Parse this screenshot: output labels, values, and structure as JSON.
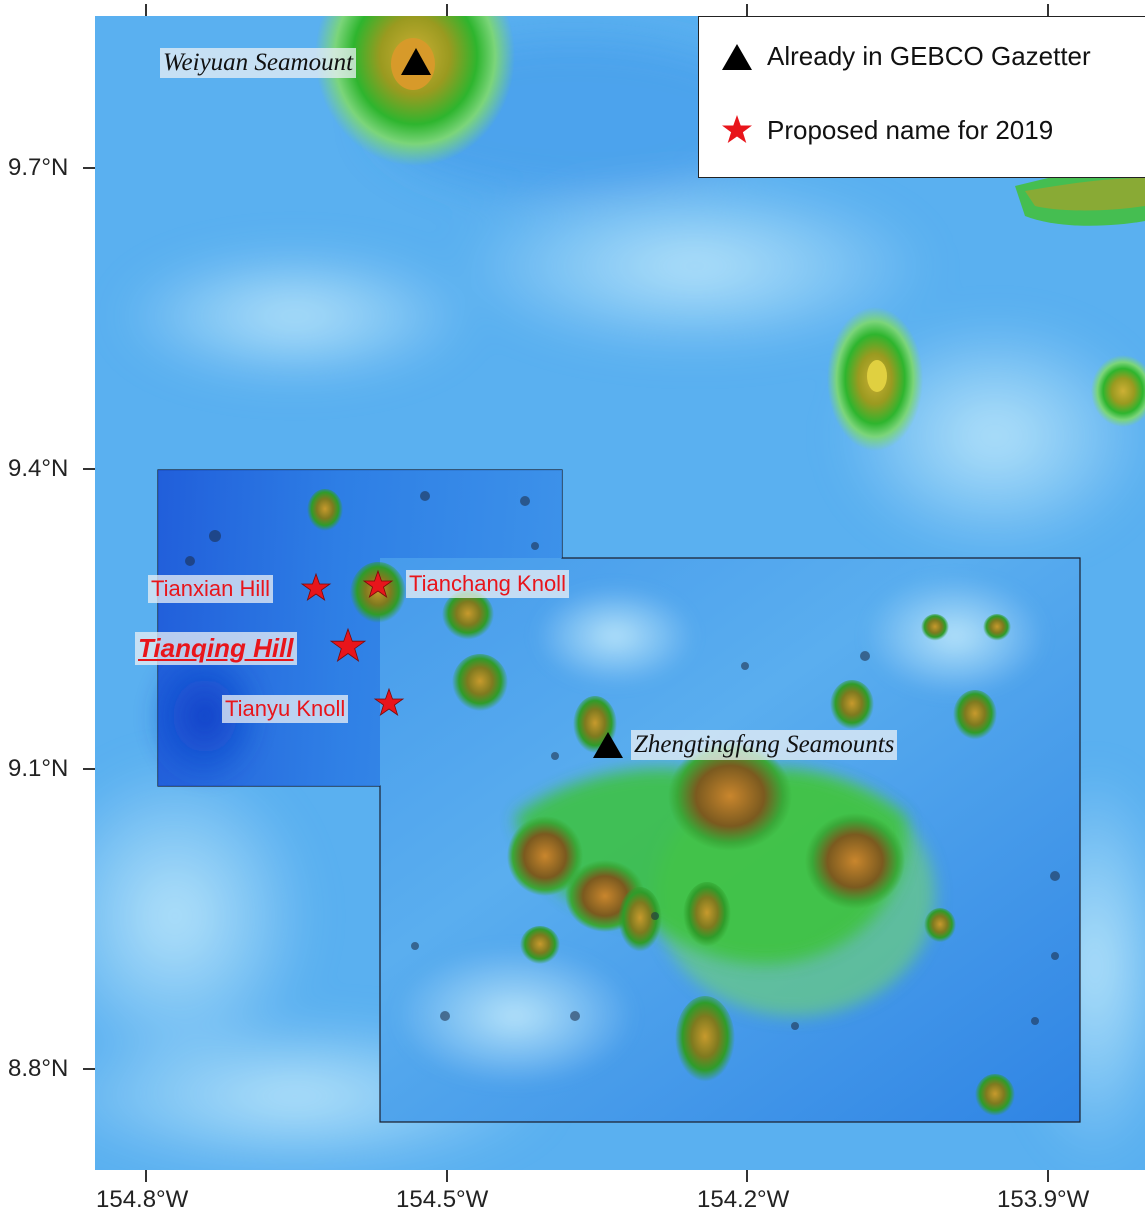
{
  "map": {
    "x_ticks": [
      "154.8°W",
      "154.5°W",
      "154.2°W",
      "153.9°W"
    ],
    "y_ticks": [
      "9.7°N",
      "9.4°N",
      "9.1°N",
      "8.8°N"
    ],
    "legend": {
      "existing": {
        "label": "Already in GEBCO Gazetter",
        "symbol": "black-triangle"
      },
      "proposed": {
        "label": "Proposed name for 2019",
        "symbol": "red-star"
      }
    },
    "features": {
      "weiyuan": "Weiyuan Seamount",
      "tianxian": "Tianxian Hill",
      "tianchang": "Tianchang Knoll",
      "tianqing": "Tianqing Hill",
      "tianyu": "Tianyu Knoll",
      "zhengtingfang": "Zhengtingfang Seamounts"
    },
    "colors": {
      "deep": "#1a5fd6",
      "mid": "#4fa8ef",
      "shallow": "#9ad6f7",
      "green": "#3cc23a",
      "peak": "#c5952a",
      "star": "#e8151b",
      "triangle": "#000000"
    }
  }
}
